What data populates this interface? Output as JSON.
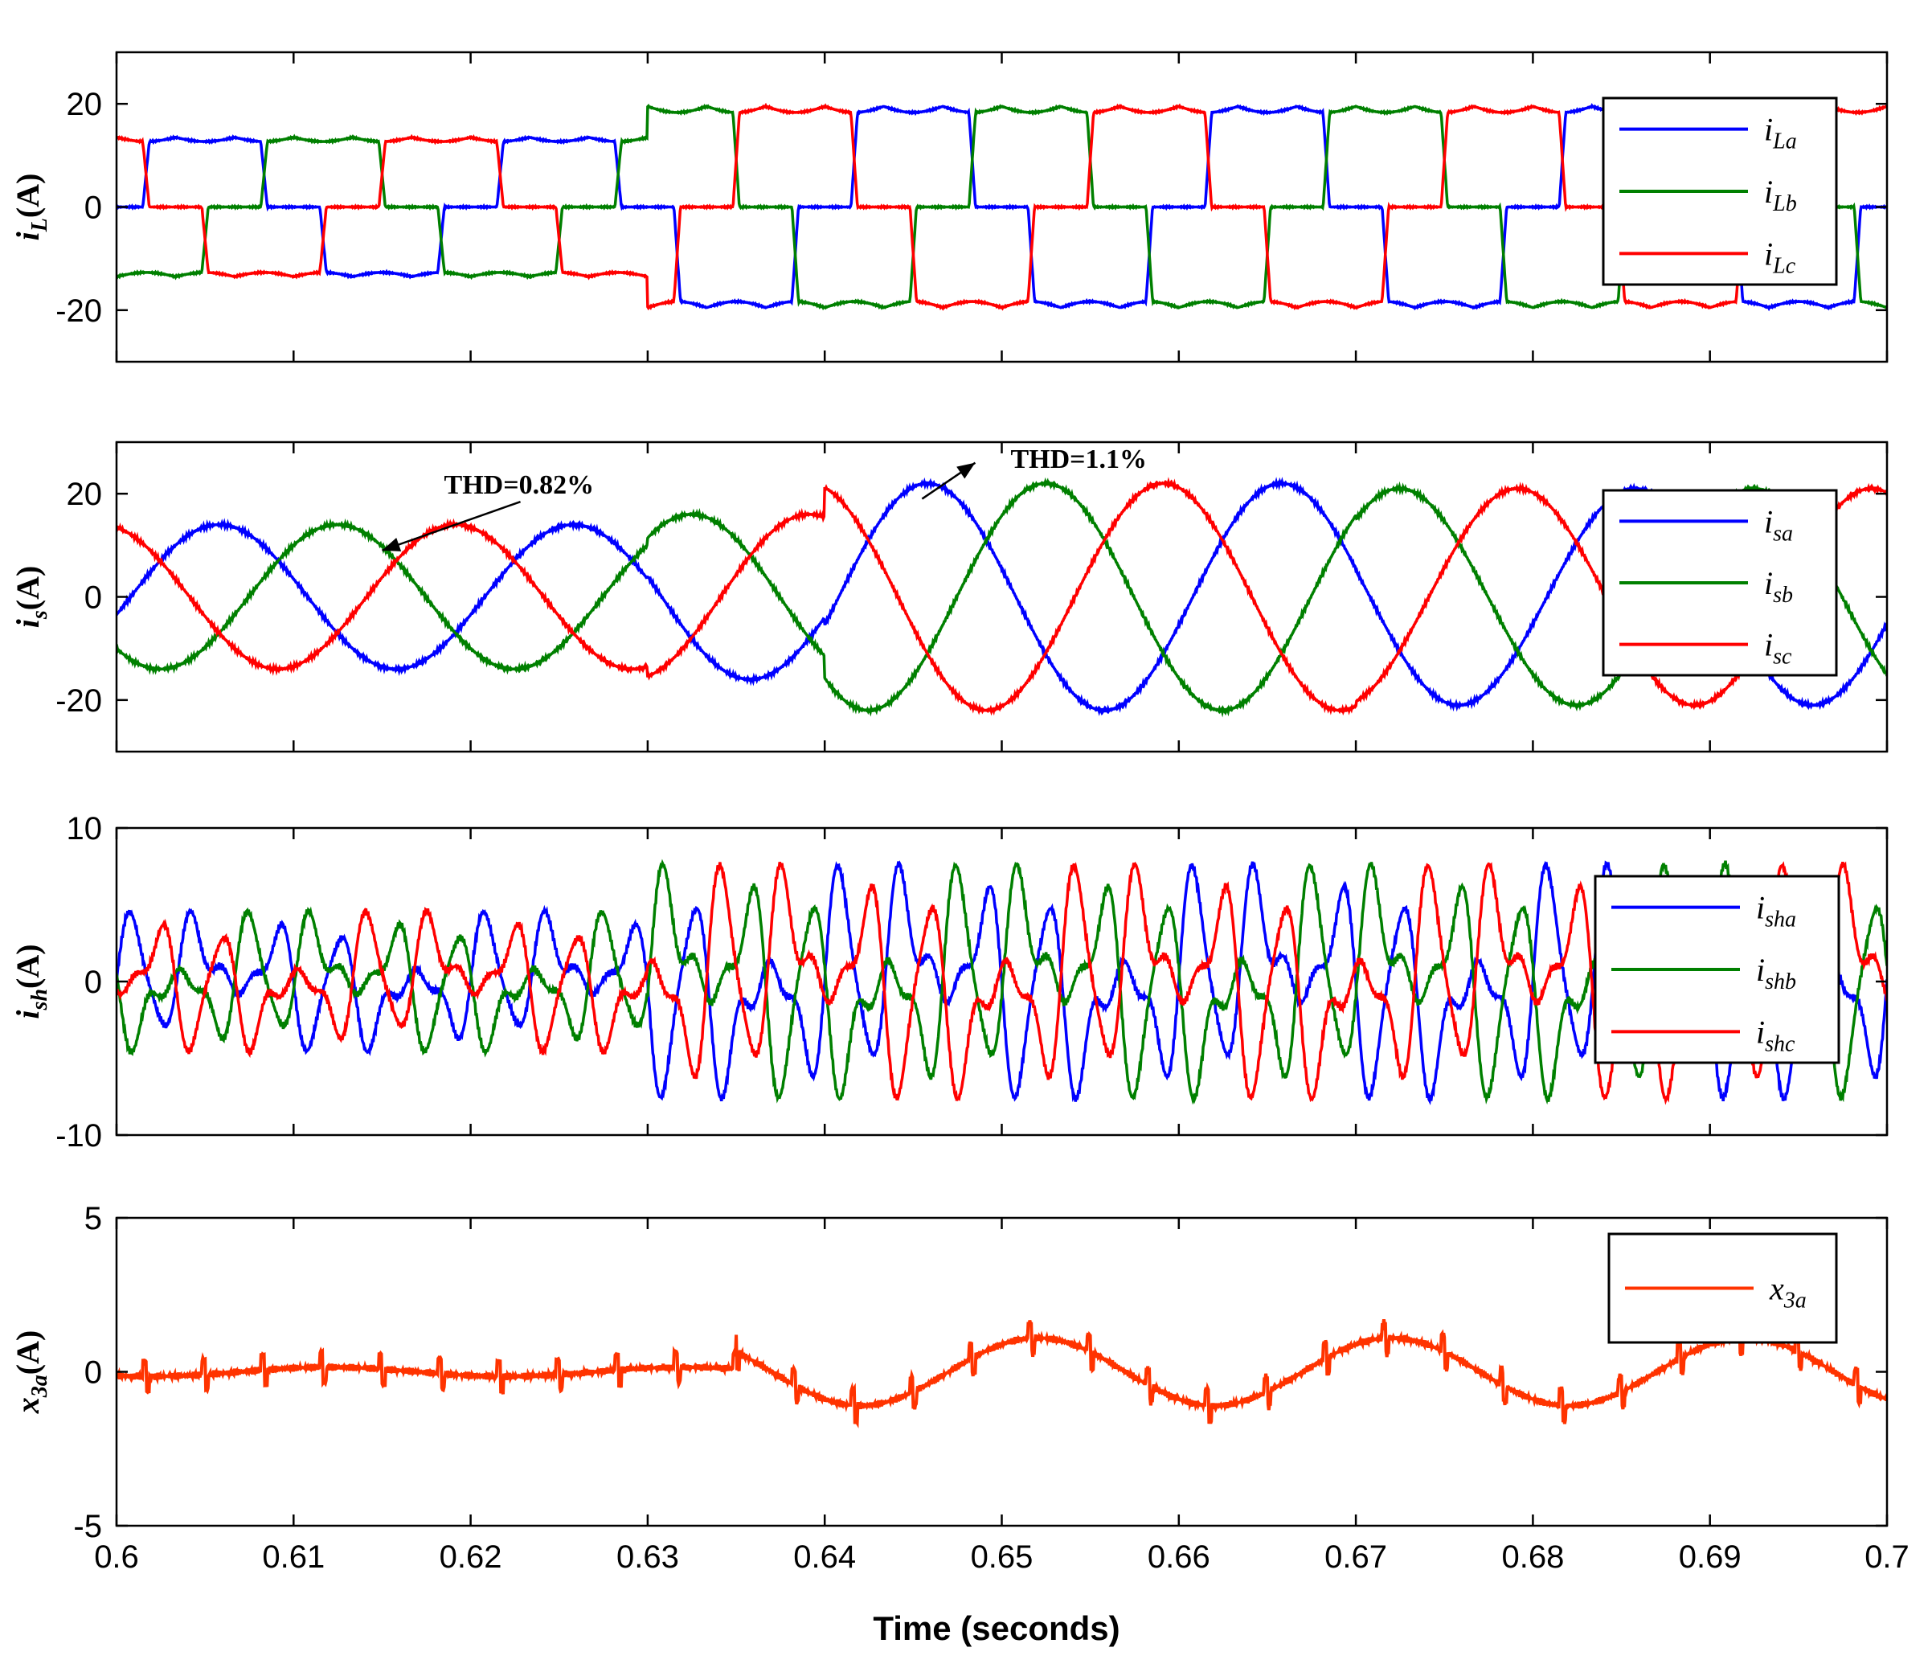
{
  "chart_data": {
    "type": "line",
    "shared_x": {
      "label": "Time (seconds)",
      "range": [
        0.6,
        0.7
      ],
      "ticks": [
        0.6,
        0.61,
        0.62,
        0.63,
        0.64,
        0.65,
        0.66,
        0.67,
        0.68,
        0.69,
        0.7
      ],
      "tick_labels": [
        "0.6",
        "0.61",
        "0.62",
        "0.63",
        "0.64",
        "0.65",
        "0.66",
        "0.67",
        "0.68",
        "0.69",
        "0.7"
      ]
    },
    "panels": [
      {
        "id": "iL",
        "ylabel_main": "i",
        "ylabel_sub": "L",
        "ylabel_tail": "(A)",
        "ylim": [
          -30,
          30
        ],
        "yticks": [
          -20,
          0,
          20
        ],
        "ytick_labels": [
          "-20",
          "0",
          "20"
        ],
        "waveform": "rectified",
        "legend_position": "top-right",
        "series": [
          {
            "label_main": "i",
            "label_sub": "La",
            "color": "#0000ff",
            "phase_deg": 0
          },
          {
            "label_main": "i",
            "label_sub": "Lb",
            "color": "#008000",
            "phase_deg": -120
          },
          {
            "label_main": "i",
            "label_sub": "Lc",
            "color": "#ff0000",
            "phase_deg": 120
          }
        ],
        "amplitude_steps": [
          {
            "t": 0.6,
            "amp": 13.5
          },
          {
            "t": 0.63,
            "amp": 19.5
          }
        ]
      },
      {
        "id": "is",
        "ylabel_main": "i",
        "ylabel_sub": "s",
        "ylabel_tail": "(A)",
        "ylim": [
          -30,
          30
        ],
        "yticks": [
          -20,
          0,
          20
        ],
        "ytick_labels": [
          "-20",
          "0",
          "20"
        ],
        "waveform": "sine",
        "legend_position": "right",
        "series": [
          {
            "label_main": "i",
            "label_sub": "sa",
            "color": "#0000ff",
            "phase_deg": 0
          },
          {
            "label_main": "i",
            "label_sub": "sb",
            "color": "#008000",
            "phase_deg": -120
          },
          {
            "label_main": "i",
            "label_sub": "sc",
            "color": "#ff0000",
            "phase_deg": 120
          }
        ],
        "amplitude_steps": [
          {
            "t": 0.6,
            "amp": 14
          },
          {
            "t": 0.63,
            "amp": 16
          },
          {
            "t": 0.64,
            "amp": 22
          },
          {
            "t": 0.67,
            "amp": 21
          }
        ],
        "annotations": [
          {
            "text": "THD=0.82%",
            "x": 0.6185,
            "y": 20,
            "arrow_to": [
              0.615,
              9
            ]
          },
          {
            "text": "THD=1.1%",
            "x": 0.6505,
            "y": 25,
            "arrow_from": [
              0.6455,
              19
            ],
            "arrow_to": [
              0.6485,
              26
            ]
          }
        ]
      },
      {
        "id": "ish",
        "ylabel_main": "i",
        "ylabel_sub": "sh",
        "ylabel_tail": "(A)",
        "ylim": [
          -10,
          10
        ],
        "yticks": [
          -10,
          0,
          10
        ],
        "ytick_labels": [
          "-10",
          "0",
          "10"
        ],
        "waveform": "harmonic",
        "legend_position": "right",
        "series": [
          {
            "label_main": "i",
            "label_sub": "sha",
            "color": "#0000ff",
            "phase_deg": 0
          },
          {
            "label_main": "i",
            "label_sub": "shb",
            "color": "#008000",
            "phase_deg": -120
          },
          {
            "label_main": "i",
            "label_sub": "shc",
            "color": "#ff0000",
            "phase_deg": 120
          }
        ],
        "amplitude_steps": [
          {
            "t": 0.6,
            "amp": 4.5
          },
          {
            "t": 0.63,
            "amp": 7.5
          }
        ]
      },
      {
        "id": "x3a",
        "ylabel_main": "x",
        "ylabel_sub": "3a",
        "ylabel_tail": "(A)",
        "ylim": [
          -5,
          5
        ],
        "yticks": [
          -5,
          0,
          5
        ],
        "ytick_labels": [
          "-5",
          "0",
          "5"
        ],
        "waveform": "slow",
        "legend_position": "top-right",
        "series": [
          {
            "label_main": "x",
            "label_sub": "3a",
            "color": "#ff3300",
            "phase_deg": 0
          }
        ],
        "amplitude_steps": [
          {
            "t": 0.6,
            "amp": 0.15
          },
          {
            "t": 0.635,
            "amp": 1.1
          }
        ]
      }
    ]
  }
}
